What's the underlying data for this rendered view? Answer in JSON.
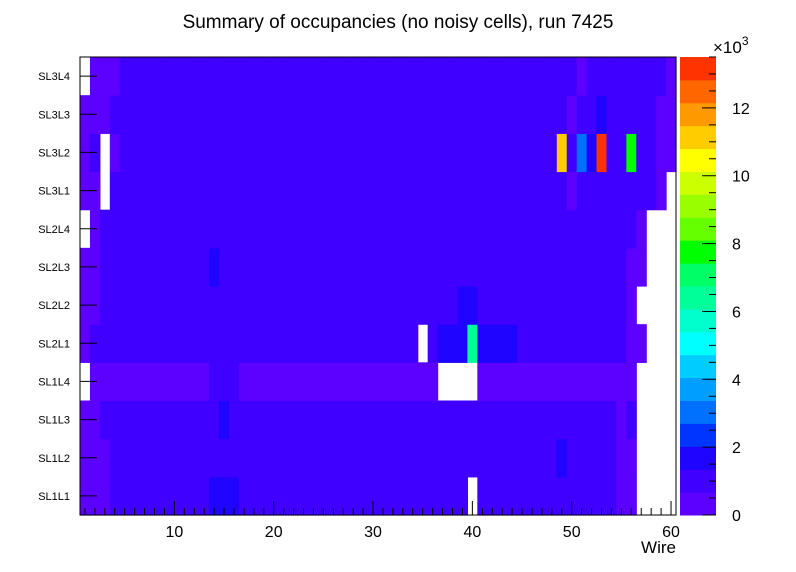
{
  "chart_data": {
    "type": "heatmap",
    "title": "Summary of occupancies (no noisy cells), run 7425",
    "xlabel": "Wire",
    "ylabel": "",
    "x_range": [
      0.5,
      60.5
    ],
    "x_ticks": [
      10,
      20,
      30,
      40,
      50,
      60
    ],
    "x_tick_labels": [
      "10",
      "20",
      "30",
      "40",
      "50",
      "60"
    ],
    "rows": [
      "SL1L1",
      "SL1L2",
      "SL1L3",
      "SL1L4",
      "SL2L1",
      "SL2L2",
      "SL2L3",
      "SL2L4",
      "SL3L1",
      "SL3L2",
      "SL3L3",
      "SL3L4"
    ],
    "z_range": [
      0,
      13500
    ],
    "z_axis_multiplier": "×10",
    "z_axis_exponent": "3",
    "z_ticks": [
      0,
      2000,
      4000,
      6000,
      8000,
      10000,
      12000
    ],
    "z_tick_labels": [
      "0",
      "2",
      "4",
      "6",
      "8",
      "10",
      "12"
    ],
    "palette": [
      "#5c00ff",
      "#3f00ff",
      "#1f05ff",
      "#0035ff",
      "#0070ff",
      "#009eff",
      "#00ccff",
      "#00ffff",
      "#00ffcc",
      "#00ff99",
      "#00ff66",
      "#00ff00",
      "#66ff00",
      "#99ff00",
      "#ccff00",
      "#ffff00",
      "#ffcc00",
      "#ff9900",
      "#ff6600",
      "#ff3300"
    ],
    "values": [
      [
        500,
        500,
        500,
        1000,
        1000,
        1000,
        1000,
        1000,
        1000,
        1000,
        1000,
        1000,
        1000,
        1500,
        1800,
        1500,
        1000,
        1000,
        1000,
        1000,
        1000,
        1000,
        1000,
        1000,
        1000,
        1000,
        1000,
        1000,
        1000,
        1000,
        1000,
        1000,
        1000,
        1000,
        1000,
        1000,
        1000,
        1000,
        1000,
        null,
        1000,
        1000,
        1000,
        1000,
        1000,
        1000,
        1000,
        1000,
        1000,
        1000,
        1000,
        1000,
        1000,
        1000,
        500,
        500,
        null,
        null,
        null,
        null
      ],
      [
        500,
        500,
        500,
        1000,
        1000,
        1000,
        1000,
        1000,
        1000,
        1000,
        1000,
        1000,
        1000,
        1000,
        1000,
        1000,
        1000,
        1000,
        1000,
        1000,
        1000,
        1000,
        1000,
        1000,
        1000,
        1000,
        1000,
        1000,
        1000,
        1000,
        1000,
        1000,
        1000,
        1000,
        1000,
        1000,
        1000,
        1000,
        1000,
        1000,
        1000,
        1000,
        1000,
        1000,
        1000,
        1000,
        1000,
        1000,
        1500,
        1000,
        1000,
        1000,
        1000,
        1000,
        500,
        500,
        null,
        null,
        null,
        null
      ],
      [
        500,
        500,
        1000,
        1000,
        1000,
        1000,
        1000,
        1000,
        1000,
        1000,
        1000,
        1000,
        1000,
        1000,
        1500,
        1000,
        1000,
        1000,
        1000,
        1000,
        1000,
        1000,
        1000,
        1000,
        1000,
        1000,
        1000,
        1000,
        1000,
        1000,
        1000,
        1000,
        1000,
        1000,
        1000,
        1000,
        1000,
        1000,
        1000,
        1000,
        1000,
        1000,
        1000,
        1000,
        1000,
        1000,
        1000,
        1000,
        1000,
        1000,
        1000,
        1000,
        1000,
        1000,
        500,
        1000,
        null,
        null,
        null,
        null
      ],
      [
        null,
        500,
        500,
        500,
        500,
        500,
        500,
        500,
        500,
        500,
        500,
        500,
        500,
        1000,
        1000,
        1000,
        500,
        500,
        500,
        500,
        500,
        500,
        500,
        500,
        500,
        500,
        500,
        500,
        500,
        500,
        500,
        500,
        500,
        500,
        500,
        500,
        null,
        null,
        null,
        null,
        500,
        500,
        500,
        500,
        500,
        500,
        500,
        500,
        500,
        500,
        500,
        500,
        500,
        500,
        500,
        500,
        null,
        null,
        null,
        null
      ],
      [
        500,
        1000,
        1000,
        1000,
        1000,
        1000,
        1000,
        1000,
        1000,
        1000,
        1000,
        1000,
        1000,
        1000,
        1000,
        1000,
        1000,
        1000,
        1000,
        1000,
        1000,
        1000,
        1000,
        1000,
        1000,
        1000,
        1000,
        1000,
        1000,
        1000,
        1000,
        1000,
        1000,
        1000,
        null,
        1000,
        1500,
        1800,
        1800,
        6500,
        1800,
        2000,
        2000,
        2000,
        1000,
        1000,
        1000,
        1000,
        1000,
        1000,
        1000,
        1000,
        1000,
        1000,
        1000,
        500,
        500,
        null,
        null,
        null
      ],
      [
        500,
        500,
        1000,
        1000,
        1000,
        1000,
        1000,
        1000,
        1000,
        1000,
        1000,
        1000,
        1000,
        1000,
        1000,
        1000,
        1000,
        1000,
        1000,
        1000,
        1000,
        1000,
        1000,
        1000,
        1000,
        1000,
        1000,
        1000,
        1000,
        1000,
        1000,
        1000,
        1000,
        1000,
        1000,
        1000,
        1000,
        1000,
        1800,
        1800,
        1000,
        1000,
        1000,
        1000,
        1000,
        1000,
        1000,
        1000,
        1000,
        1000,
        1000,
        1000,
        1000,
        1000,
        1000,
        500,
        null,
        null,
        null,
        null
      ],
      [
        500,
        500,
        1000,
        1000,
        1000,
        1000,
        1000,
        1000,
        1000,
        1000,
        1000,
        1000,
        1000,
        1500,
        1000,
        1000,
        1000,
        1000,
        1000,
        1000,
        1000,
        1000,
        1000,
        1000,
        1000,
        1000,
        1000,
        1000,
        1000,
        1000,
        1000,
        1000,
        1000,
        1000,
        1000,
        1000,
        1000,
        1000,
        1000,
        1000,
        1000,
        1000,
        1000,
        1000,
        1000,
        1000,
        1000,
        1000,
        1000,
        1000,
        1000,
        1000,
        1000,
        1000,
        1000,
        500,
        500,
        null,
        null,
        null
      ],
      [
        null,
        500,
        1000,
        1000,
        1000,
        1000,
        1000,
        1000,
        1000,
        1000,
        1000,
        1000,
        1000,
        1000,
        1000,
        1000,
        1000,
        1000,
        1000,
        1000,
        1000,
        1000,
        1000,
        1000,
        1000,
        1000,
        1000,
        1000,
        1000,
        1000,
        1000,
        1000,
        1000,
        1000,
        1000,
        1000,
        1000,
        1000,
        1000,
        1000,
        1000,
        1000,
        1000,
        1000,
        1000,
        1000,
        1000,
        1000,
        1000,
        1000,
        1000,
        1000,
        1000,
        1000,
        1000,
        1000,
        500,
        null,
        null,
        null
      ],
      [
        500,
        500,
        null,
        1000,
        1000,
        1000,
        1000,
        1000,
        1000,
        1000,
        1000,
        1000,
        1000,
        1000,
        1000,
        1000,
        1000,
        1000,
        1000,
        1000,
        1000,
        1000,
        1000,
        1000,
        1000,
        1000,
        1000,
        1000,
        1000,
        1000,
        1000,
        1000,
        1000,
        1000,
        1000,
        1000,
        1000,
        1000,
        1000,
        1000,
        1000,
        1000,
        1000,
        1000,
        1000,
        1000,
        1000,
        1000,
        1000,
        500,
        1000,
        1000,
        1000,
        1000,
        1000,
        1000,
        1000,
        1000,
        500,
        null
      ],
      [
        500,
        1000,
        null,
        500,
        1000,
        1000,
        1000,
        1000,
        1000,
        1000,
        1000,
        1000,
        1000,
        1000,
        1000,
        1000,
        1000,
        1000,
        1000,
        1000,
        1000,
        1000,
        1000,
        1000,
        1000,
        1000,
        1000,
        1000,
        1000,
        1000,
        1000,
        1000,
        1000,
        1000,
        1000,
        1000,
        1000,
        1000,
        1000,
        1000,
        1000,
        1000,
        1000,
        1000,
        1000,
        1000,
        1000,
        1000,
        10800,
        1000,
        3200,
        1500,
        13000,
        1000,
        1000,
        7500,
        1000,
        1000,
        500,
        500
      ],
      [
        500,
        500,
        500,
        1000,
        1000,
        1000,
        1000,
        1000,
        1000,
        1000,
        1000,
        1000,
        1000,
        1000,
        1000,
        1000,
        1000,
        1000,
        1000,
        1000,
        1000,
        1000,
        1000,
        1000,
        1000,
        1000,
        1000,
        1000,
        1000,
        1000,
        1000,
        1000,
        1000,
        1000,
        1000,
        1000,
        1000,
        1000,
        1000,
        1000,
        1000,
        1000,
        1000,
        1000,
        1000,
        1000,
        1000,
        1000,
        1000,
        500,
        1000,
        1000,
        1500,
        1000,
        1000,
        1000,
        1000,
        1000,
        500,
        500
      ],
      [
        null,
        500,
        500,
        500,
        1000,
        1000,
        1000,
        1000,
        1000,
        1000,
        1000,
        1000,
        1000,
        1000,
        1000,
        1000,
        1000,
        1000,
        1000,
        1000,
        1000,
        1000,
        1000,
        1000,
        1000,
        1000,
        1000,
        1000,
        1000,
        1000,
        1000,
        1000,
        1000,
        1000,
        1000,
        1000,
        1000,
        1000,
        1000,
        1000,
        1000,
        1000,
        1000,
        1000,
        1000,
        1000,
        1000,
        1000,
        1000,
        1000,
        500,
        1000,
        1000,
        1000,
        1000,
        1000,
        1000,
        1000,
        1000,
        500
      ]
    ]
  }
}
